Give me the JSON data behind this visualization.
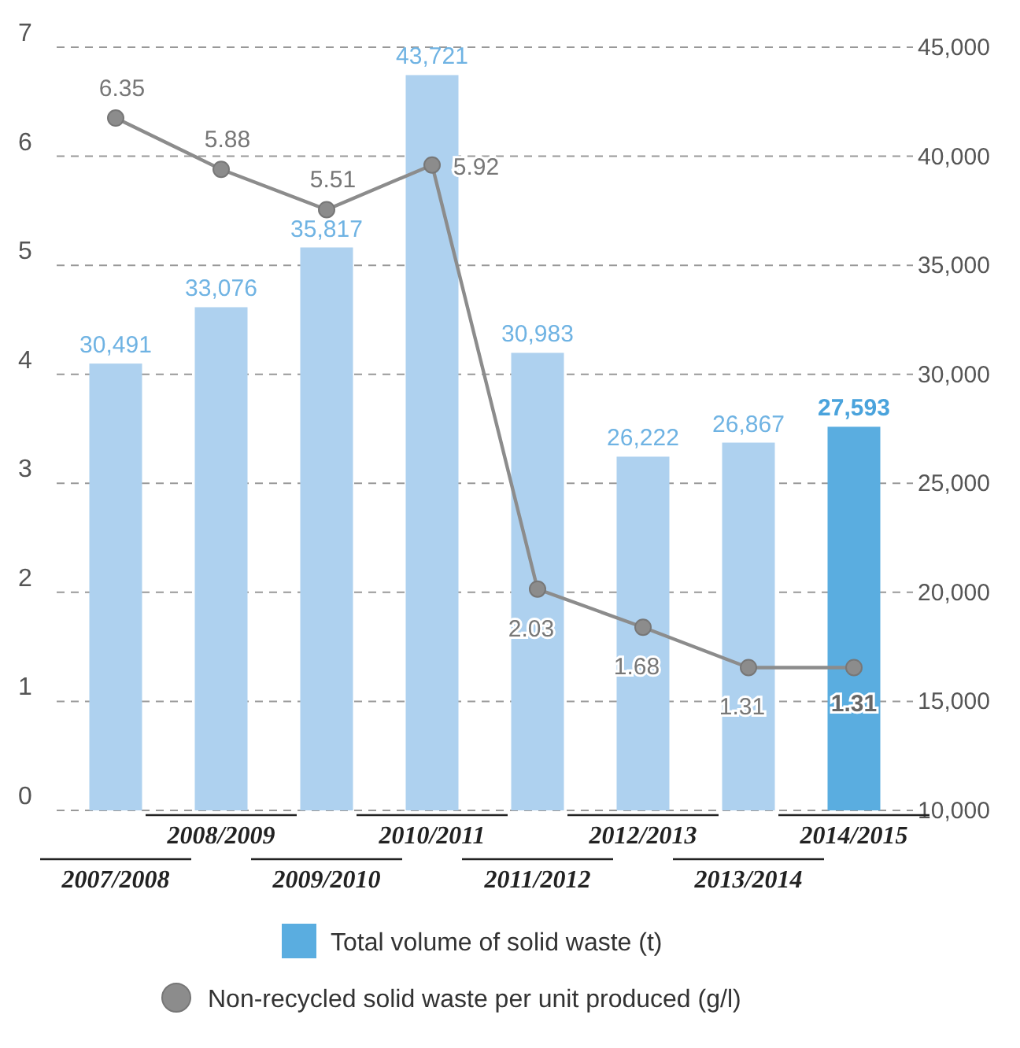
{
  "chart_data": {
    "type": "bar",
    "categories": [
      "2007/2008",
      "2008/2009",
      "2009/2010",
      "2010/2011",
      "2011/2012",
      "2012/2013",
      "2013/2014",
      "2014/2015"
    ],
    "series": [
      {
        "axis": "y2",
        "name": "Total volume of solid waste (t)",
        "color": "#5aade0",
        "colors": [
          "#aed1ef",
          "#aed1ef",
          "#aed1ef",
          "#aed1ef",
          "#aed1ef",
          "#aed1ef",
          "#aed1ef",
          "#5aade0"
        ],
        "values": [
          30491,
          33076,
          35817,
          43721,
          30983,
          26222,
          26867,
          27593
        ],
        "value_labels": [
          "30,491",
          "33,076",
          "35,817",
          "43,721",
          "30,983",
          "26,222",
          "26,867",
          "27,593"
        ]
      },
      {
        "type": "line",
        "name": "Non-recycled solid waste per unit produced (g/l)",
        "color": "#8c8c8c",
        "values": [
          6.35,
          5.88,
          5.51,
          5.92,
          2.03,
          1.68,
          1.31,
          1.31
        ],
        "value_labels": [
          "6.35",
          "5.88",
          "5.51",
          "5.92",
          "2.03",
          "1.68",
          "1.31",
          "1.31"
        ]
      }
    ],
    "ylim": [
      0,
      7
    ],
    "yticks": [
      0,
      1,
      2,
      3,
      4,
      5,
      6,
      7
    ],
    "y2lim": [
      10000,
      45000
    ],
    "y2ticks": [
      {
        "value": 10000,
        "label": "10,000"
      },
      {
        "value": 15000,
        "label": "15,000"
      },
      {
        "value": 20000,
        "label": "20,000"
      },
      {
        "value": 25000,
        "label": "25,000"
      },
      {
        "value": 30000,
        "label": "30,000"
      },
      {
        "value": 35000,
        "label": "35,000"
      },
      {
        "value": 40000,
        "label": "40,000"
      },
      {
        "value": 45000,
        "label": "45,000"
      }
    ],
    "grid": "y",
    "legend": "bottom",
    "marker": "circle",
    "line_style": "solid"
  }
}
